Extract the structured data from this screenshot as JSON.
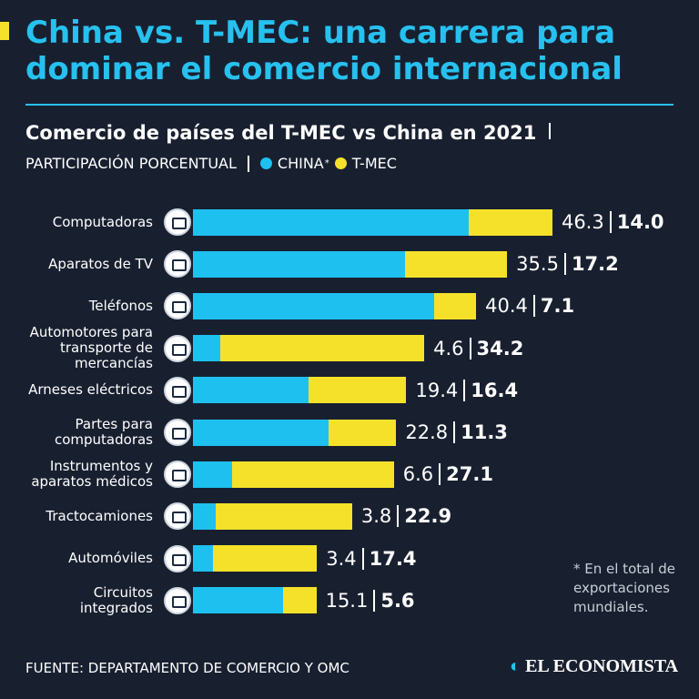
{
  "chart_data": {
    "type": "bar",
    "orientation": "horizontal",
    "stacked": true,
    "title": "China vs. T-MEC: una carrera para dominar el comercio internacional",
    "subtitle": "Comercio de países del T-MEC vs China en 2021",
    "units_label": "PARTICIPACIÓN PORCENTUAL",
    "legend_marker": "*",
    "categories": [
      "Computadoras",
      "Aparatos de TV",
      "Teléfonos",
      "Automotores para transporte de mercancías",
      "Arneses eléctricos",
      "Partes para computadoras",
      "Instrumentos y aparatos médicos",
      "Tractocamiones",
      "Automóviles",
      "Circuitos integrados"
    ],
    "series": [
      {
        "name": "CHINA",
        "color": "#1ec0f0",
        "values": [
          46.3,
          35.5,
          40.4,
          4.6,
          19.4,
          22.8,
          6.6,
          3.8,
          3.4,
          15.1
        ]
      },
      {
        "name": "T-MEC",
        "color": "#f5e12a",
        "values": [
          14.0,
          17.2,
          7.1,
          34.2,
          16.4,
          11.3,
          27.1,
          22.9,
          17.4,
          5.6
        ],
        "value_labels": [
          "14.0",
          "17.2",
          "7.1",
          "34.2",
          "16.4",
          "11.3",
          "27.1",
          "22.9",
          "17.4",
          "5.6"
        ]
      }
    ],
    "footnote": "* En el total de exportaciones mundiales.",
    "source": "FUENTE: DEPARTAMENTO DE COMERCIO Y OMC",
    "brand": "EL ECONOMISTA"
  }
}
